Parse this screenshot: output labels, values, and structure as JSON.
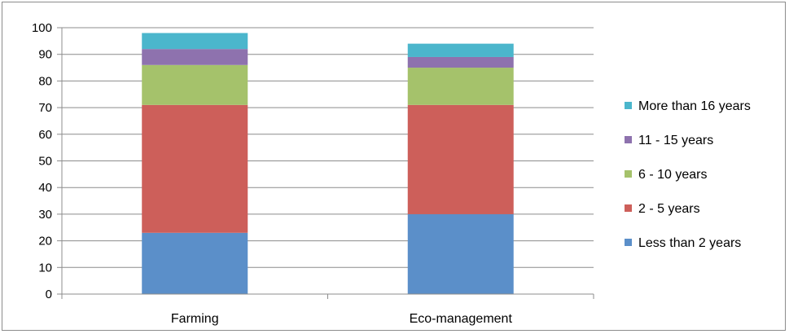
{
  "chart_data": {
    "type": "bar",
    "stacked": true,
    "categories": [
      "Farming",
      "Eco-management"
    ],
    "series": [
      {
        "name": "Less than 2 years",
        "values": [
          23,
          30
        ],
        "color": "#5B8FC9"
      },
      {
        "name": "2 - 5 years",
        "values": [
          48,
          41
        ],
        "color": "#CD5F5A"
      },
      {
        "name": "6 - 10 years",
        "values": [
          15,
          14
        ],
        "color": "#A5C26B"
      },
      {
        "name": "11 - 15 years",
        "values": [
          6,
          4
        ],
        "color": "#8E72AE"
      },
      {
        "name": "More than 16 years",
        "values": [
          6,
          5
        ],
        "color": "#4BB6CC"
      }
    ],
    "ylim": [
      0,
      100
    ],
    "yticks": [
      0,
      10,
      20,
      30,
      40,
      50,
      60,
      70,
      80,
      90,
      100
    ],
    "grid": true,
    "legend_position": "right",
    "legend_order": [
      "More than 16 years",
      "11 - 15 years",
      "6 - 10 years",
      "2 - 5 years",
      "Less than 2 years"
    ]
  }
}
